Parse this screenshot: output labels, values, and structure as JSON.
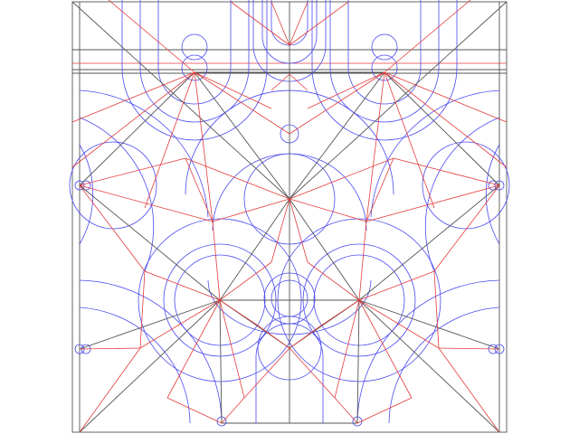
{
  "diagram": {
    "kind": "crease-pattern",
    "colors": {
      "background": "#ffffff",
      "border": "#555555",
      "mountain": "#e33b3b",
      "valley": "#4a4af0"
    },
    "texts": []
  }
}
